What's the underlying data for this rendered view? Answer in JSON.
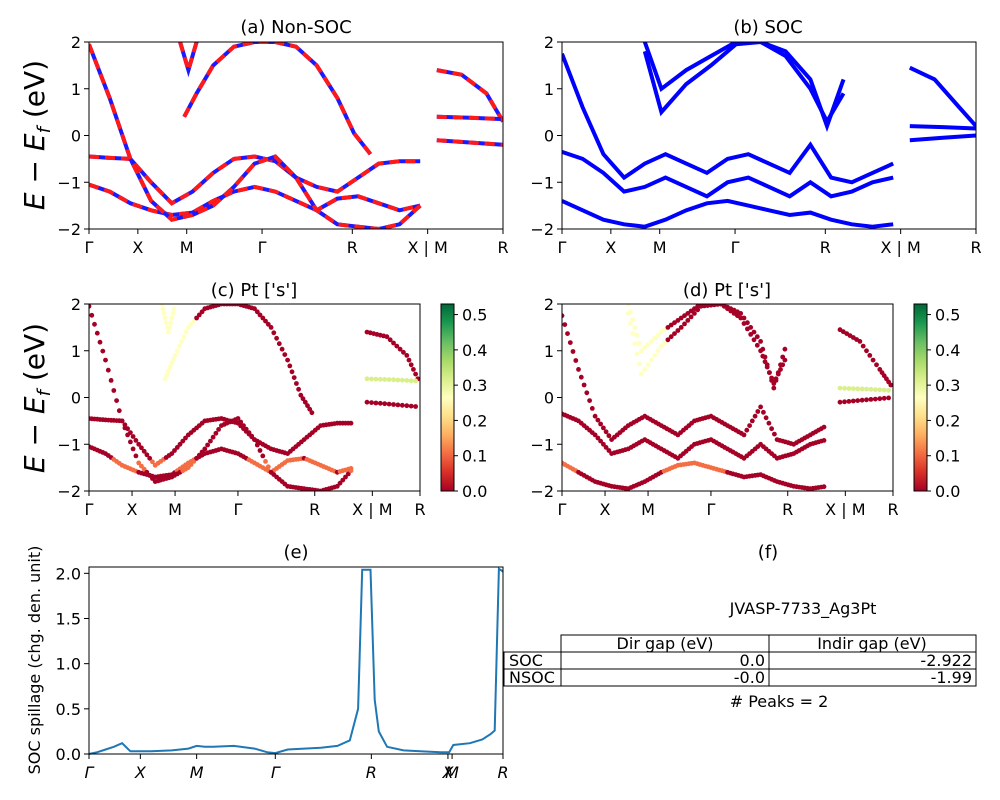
{
  "colors": {
    "nonsoc_line": "#ff1a1a",
    "nonsoc_dash": "#1a1aff",
    "soc_line": "#0000ff",
    "spillage_line": "#1f77b4",
    "cmap": [
      "#a50026",
      "#d73027",
      "#f46d43",
      "#fdae61",
      "#fee08b",
      "#ffffbf",
      "#d9ef8b",
      "#a6d96a",
      "#66bd63",
      "#1a9850",
      "#006837"
    ]
  },
  "ylabel_band": "E − E_f (eV)",
  "band_x_positions": [
    0,
    0.118,
    0.236,
    0.418,
    0.636,
    0.771,
    0.864,
    1.0
  ],
  "panels": [
    {
      "id": "a",
      "title": "(a) Non-SOC",
      "kticks": [
        "Γ",
        "X",
        "M",
        "Γ",
        "R",
        "X | M",
        "R"
      ],
      "kpos": [
        0,
        0.118,
        0.236,
        0.418,
        0.636,
        0.818,
        1.0
      ],
      "yticks": [
        "−2",
        "−1",
        "0",
        "1",
        "2"
      ]
    },
    {
      "id": "b",
      "title": "(b) SOC",
      "kticks": [
        "Γ",
        "X",
        "M",
        "Γ",
        "R",
        "X | M",
        "R"
      ],
      "kpos": [
        0,
        0.118,
        0.236,
        0.418,
        0.636,
        0.818,
        1.0
      ],
      "yticks": [
        "−2",
        "−1",
        "0",
        "1",
        "2"
      ]
    },
    {
      "id": "c",
      "title": "(c)  Pt ['s']",
      "kticks": [
        "Γ",
        "X",
        "M",
        "Γ",
        "R",
        "X | M",
        "R"
      ],
      "kpos": [
        0,
        0.13,
        0.26,
        0.45,
        0.682,
        0.856,
        1.0
      ],
      "yticks": [
        "−2",
        "−1",
        "0",
        "1",
        "2"
      ]
    },
    {
      "id": "d",
      "title": "(d) Pt ['s']",
      "kticks": [
        "Γ",
        "X",
        "M",
        "Γ",
        "R",
        "X | M",
        "R"
      ],
      "kpos": [
        0,
        0.13,
        0.26,
        0.45,
        0.682,
        0.856,
        1.0
      ],
      "yticks": [
        "−2",
        "−1",
        "0",
        "1",
        "2"
      ]
    },
    {
      "id": "e",
      "title": "(e)",
      "kticks": [
        "Γ",
        "X",
        "M",
        "Γ",
        "R",
        "X",
        "M",
        "R"
      ],
      "kpos": [
        0,
        0.124,
        0.26,
        0.45,
        0.682,
        0.867,
        0.877,
        1.0
      ],
      "yticks": [
        "0.0",
        "0.5",
        "1.0",
        "1.5",
        "2.0"
      ]
    },
    {
      "id": "f",
      "title": "(f)"
    }
  ],
  "colorbar_ticks": [
    "0.0",
    "0.1",
    "0.2",
    "0.3",
    "0.4",
    "0.5"
  ],
  "chart_data": [
    {
      "type": "line",
      "title": "(a) Non-SOC",
      "ylabel": "E − E_f (eV)",
      "ylim": [
        -2,
        2
      ],
      "x_labels": [
        "Γ",
        "X",
        "M",
        "Γ",
        "R",
        "X | M",
        "R"
      ],
      "series": [
        {
          "x": [
            0,
            0.05,
            0.1,
            0.15,
            0.2,
            0.25,
            0.3,
            0.35,
            0.4,
            0.45,
            0.5,
            0.55,
            0.6,
            0.65,
            0.7,
            0.75,
            0.8
          ],
          "values": [
            -0.45,
            -0.48,
            -0.5,
            -1.0,
            -1.45,
            -1.2,
            -0.8,
            -0.5,
            -0.45,
            -0.55,
            -0.9,
            -1.1,
            -1.2,
            -0.9,
            -0.6,
            -0.55,
            -0.55
          ]
        },
        {
          "x": [
            0,
            0.05,
            0.1,
            0.15,
            0.2,
            0.25,
            0.3,
            0.35,
            0.4,
            0.45,
            0.5,
            0.55,
            0.6,
            0.65,
            0.7,
            0.75,
            0.8
          ],
          "values": [
            -1.05,
            -1.2,
            -1.45,
            -1.6,
            -1.7,
            -1.65,
            -1.4,
            -1.2,
            -1.1,
            -1.2,
            -1.4,
            -1.6,
            -1.35,
            -1.3,
            -1.45,
            -1.6,
            -1.5
          ]
        },
        {
          "x": [
            0,
            0.05,
            0.1,
            0.15,
            0.2,
            0.25,
            0.3,
            0.35,
            0.4,
            0.45,
            0.5,
            0.55,
            0.6,
            0.65,
            0.7,
            0.75,
            0.8
          ],
          "values": [
            1.95,
            0.8,
            -0.5,
            -1.4,
            -1.8,
            -1.7,
            -1.5,
            -1.1,
            -0.6,
            -0.45,
            -0.9,
            -1.6,
            -1.9,
            -1.95,
            -2.0,
            -1.9,
            -1.5
          ]
        },
        {
          "x": [
            0.23,
            0.26,
            0.3,
            0.35,
            0.4,
            0.45,
            0.5,
            0.55,
            0.6,
            0.64,
            0.68
          ],
          "values": [
            0.4,
            0.9,
            1.5,
            1.9,
            2.0,
            2.0,
            1.9,
            1.5,
            0.8,
            0.05,
            -0.4
          ]
        },
        {
          "x": [
            0.22,
            0.24,
            0.26
          ],
          "values": [
            2.0,
            1.4,
            2.0
          ]
        },
        {
          "x": [
            0.84,
            0.9,
            0.96,
            1.0
          ],
          "values": [
            1.4,
            1.3,
            0.9,
            0.3
          ]
        },
        {
          "x": [
            0.84,
            0.92,
            1.0
          ],
          "values": [
            0.4,
            0.38,
            0.35
          ]
        },
        {
          "x": [
            0.84,
            0.92,
            1.0
          ],
          "values": [
            -0.1,
            -0.15,
            -0.2
          ]
        }
      ]
    },
    {
      "type": "line",
      "title": "(b) SOC",
      "ylim": [
        -2,
        2
      ],
      "x_labels": [
        "Γ",
        "X",
        "M",
        "Γ",
        "R",
        "X | M",
        "R"
      ],
      "series": [
        {
          "x": [
            0,
            0.05,
            0.1,
            0.15,
            0.2,
            0.25,
            0.3,
            0.35,
            0.4,
            0.45,
            0.5,
            0.55,
            0.6,
            0.65,
            0.7,
            0.75,
            0.8
          ],
          "values": [
            1.75,
            0.6,
            -0.4,
            -0.9,
            -0.6,
            -0.4,
            -0.6,
            -0.8,
            -0.5,
            -0.4,
            -0.6,
            -0.8,
            -0.2,
            -0.9,
            -1.0,
            -0.8,
            -0.6
          ]
        },
        {
          "x": [
            0,
            0.05,
            0.1,
            0.15,
            0.2,
            0.25,
            0.3,
            0.35,
            0.4,
            0.45,
            0.5,
            0.55,
            0.6,
            0.65,
            0.7,
            0.75,
            0.8
          ],
          "values": [
            -0.35,
            -0.5,
            -0.8,
            -1.2,
            -1.1,
            -0.9,
            -1.1,
            -1.3,
            -1.0,
            -0.9,
            -1.1,
            -1.3,
            -1.0,
            -1.3,
            -1.2,
            -1.0,
            -0.9
          ]
        },
        {
          "x": [
            0,
            0.05,
            0.1,
            0.15,
            0.2,
            0.25,
            0.3,
            0.35,
            0.4,
            0.45,
            0.5,
            0.55,
            0.6,
            0.65,
            0.7,
            0.75,
            0.8
          ],
          "values": [
            -1.4,
            -1.6,
            -1.8,
            -1.9,
            -1.95,
            -1.8,
            -1.6,
            -1.45,
            -1.4,
            -1.5,
            -1.6,
            -1.7,
            -1.65,
            -1.8,
            -1.9,
            -1.95,
            -1.9
          ]
        },
        {
          "x": [
            0.2,
            0.24,
            0.3,
            0.36,
            0.42,
            0.48,
            0.54,
            0.6,
            0.64,
            0.68
          ],
          "values": [
            1.8,
            0.5,
            1.1,
            1.5,
            1.95,
            2.0,
            1.7,
            1.0,
            0.3,
            0.9
          ]
        },
        {
          "x": [
            0.2,
            0.24,
            0.3,
            0.36,
            0.42,
            0.48,
            0.54,
            0.6,
            0.64,
            0.68
          ],
          "values": [
            2.0,
            1.0,
            1.4,
            1.7,
            2.0,
            2.0,
            1.8,
            1.2,
            0.2,
            1.2
          ]
        },
        {
          "x": [
            0.84,
            0.9,
            0.96,
            1.0
          ],
          "values": [
            1.45,
            1.2,
            0.6,
            0.2
          ]
        },
        {
          "x": [
            0.84,
            0.92,
            1.0
          ],
          "values": [
            0.2,
            0.18,
            0.15
          ]
        },
        {
          "x": [
            0.84,
            0.92,
            1.0
          ],
          "values": [
            -0.1,
            -0.05,
            0.0
          ]
        }
      ]
    },
    {
      "type": "scatter",
      "title": "(c)  Pt ['s']",
      "ylim": [
        -2,
        2
      ],
      "x_labels": [
        "Γ",
        "X",
        "M",
        "Γ",
        "R",
        "X | M",
        "R"
      ],
      "colorbar_range": [
        0,
        0.53
      ]
    },
    {
      "type": "scatter",
      "title": "(d) Pt ['s']",
      "ylim": [
        -2,
        2
      ],
      "x_labels": [
        "Γ",
        "X",
        "M",
        "Γ",
        "R",
        "X | M",
        "R"
      ],
      "colorbar_range": [
        0,
        0.53
      ]
    },
    {
      "type": "line",
      "title": "(e)",
      "ylabel": "SOC spillage (chg. den. unit)",
      "ylim": [
        0,
        2.07
      ],
      "x_labels": [
        "Γ",
        "X",
        "M",
        "Γ",
        "R",
        "X",
        "M",
        "R"
      ],
      "series": [
        {
          "name": "spillage",
          "x": [
            0,
            0.02,
            0.04,
            0.06,
            0.08,
            0.1,
            0.12,
            0.15,
            0.2,
            0.24,
            0.26,
            0.28,
            0.3,
            0.35,
            0.4,
            0.43,
            0.45,
            0.48,
            0.52,
            0.56,
            0.6,
            0.63,
            0.65,
            0.66,
            0.67,
            0.68,
            0.69,
            0.7,
            0.72,
            0.76,
            0.8,
            0.85,
            0.87,
            0.88,
            0.92,
            0.95,
            0.97,
            0.98,
            0.99,
            1.0
          ],
          "values": [
            0.0,
            0.02,
            0.05,
            0.08,
            0.12,
            0.03,
            0.03,
            0.03,
            0.04,
            0.06,
            0.09,
            0.08,
            0.08,
            0.09,
            0.06,
            0.02,
            0.01,
            0.05,
            0.06,
            0.07,
            0.09,
            0.15,
            0.5,
            2.04,
            2.04,
            2.04,
            0.6,
            0.25,
            0.08,
            0.04,
            0.03,
            0.02,
            0.02,
            0.1,
            0.12,
            0.16,
            0.22,
            0.26,
            2.05,
            2.02
          ]
        }
      ]
    }
  ],
  "table": {
    "title": "JVASP-7733_Ag3Pt",
    "headers": [
      "",
      "Dir gap (eV)",
      "Indir gap (eV)"
    ],
    "rows": [
      [
        "SOC",
        "0.0",
        "-2.922"
      ],
      [
        "NSOC",
        "-0.0",
        "-1.99"
      ]
    ],
    "footer": "# Peaks = 2"
  }
}
